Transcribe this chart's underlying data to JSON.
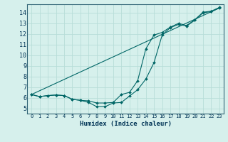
{
  "xlabel": "Humidex (Indice chaleur)",
  "background_color": "#d6f0ec",
  "grid_color": "#b8ddd8",
  "line_color": "#006666",
  "xlim": [
    -0.5,
    23.5
  ],
  "ylim": [
    4.5,
    14.8
  ],
  "xticks": [
    0,
    1,
    2,
    3,
    4,
    5,
    6,
    7,
    8,
    9,
    10,
    11,
    12,
    13,
    14,
    15,
    16,
    17,
    18,
    19,
    20,
    21,
    22,
    23
  ],
  "yticks": [
    5,
    6,
    7,
    8,
    9,
    10,
    11,
    12,
    13,
    14
  ],
  "line1_x": [
    0,
    1,
    2,
    3,
    4,
    5,
    6,
    7,
    8,
    9,
    10,
    11,
    12,
    13,
    14,
    15,
    16,
    17,
    18,
    19,
    20,
    21,
    22,
    23
  ],
  "line1_y": [
    6.3,
    6.1,
    6.2,
    6.25,
    6.2,
    5.85,
    5.75,
    5.55,
    5.15,
    5.15,
    5.5,
    5.55,
    6.15,
    6.75,
    7.75,
    9.3,
    11.9,
    12.6,
    12.9,
    12.75,
    13.3,
    14.0,
    14.1,
    14.45
  ],
  "line2_x": [
    0,
    1,
    2,
    3,
    4,
    5,
    6,
    7,
    8,
    9,
    10,
    11,
    12,
    13,
    14,
    15,
    16,
    17,
    18,
    19,
    20,
    21,
    22,
    23
  ],
  "line2_y": [
    6.3,
    6.1,
    6.2,
    6.25,
    6.2,
    5.85,
    5.75,
    5.7,
    5.5,
    5.5,
    5.55,
    6.3,
    6.5,
    7.6,
    10.6,
    11.9,
    12.15,
    12.65,
    13.0,
    12.8,
    13.35,
    14.05,
    14.15,
    14.5
  ],
  "line3_x": [
    0,
    23
  ],
  "line3_y": [
    6.3,
    14.45
  ]
}
